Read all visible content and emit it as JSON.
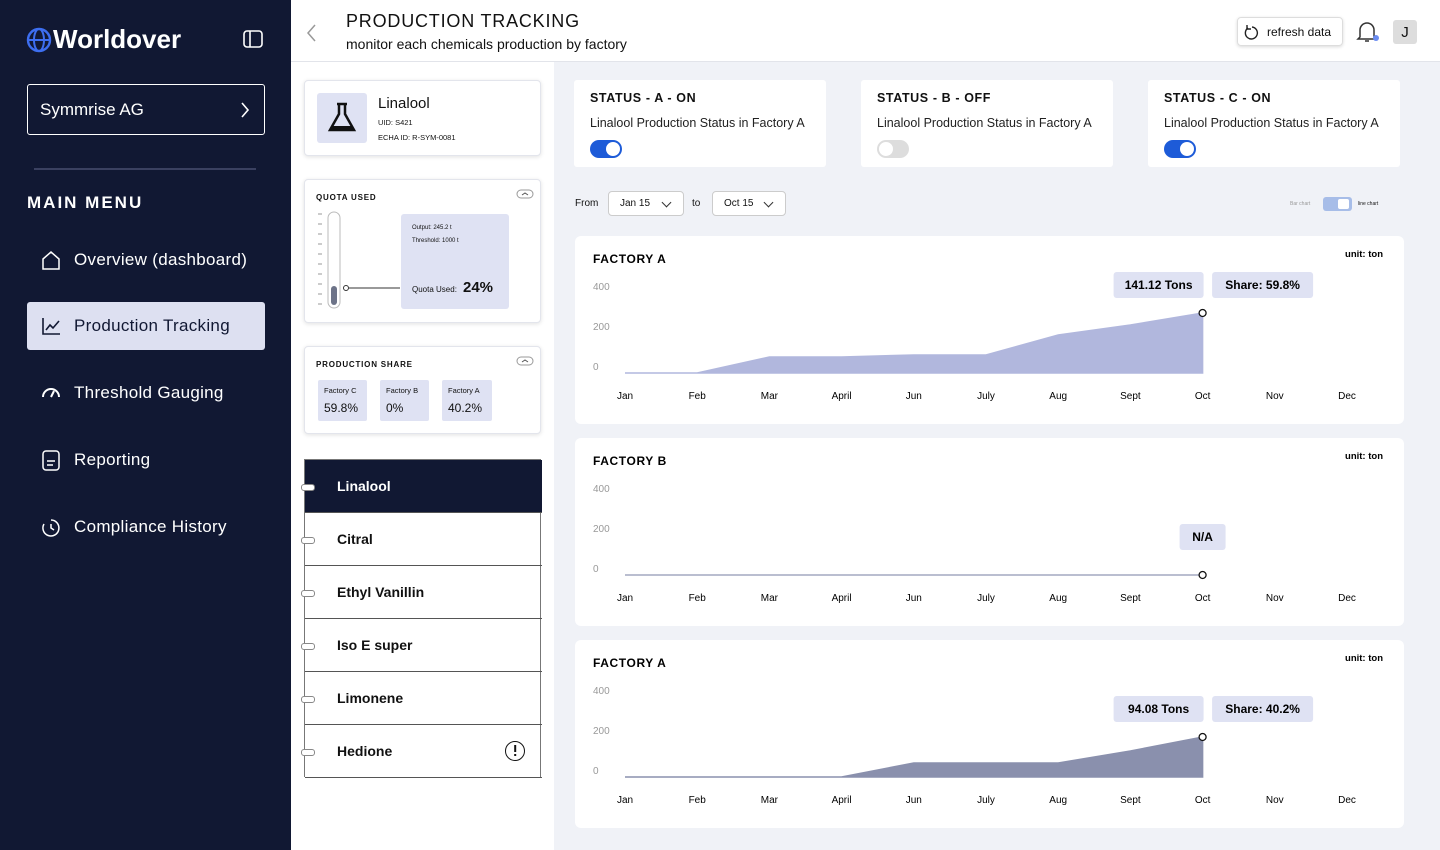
{
  "sidebar": {
    "brand": "Worldover",
    "company": "Symmrise AG",
    "menu_title": "MAIN MENU",
    "menu": [
      "Overview (dashboard)",
      "Production Tracking",
      "Threshold Gauging",
      "Reporting",
      "Compliance History"
    ]
  },
  "header": {
    "title": "PRODUCTION TRACKING",
    "subtitle": "monitor each chemicals production by factory",
    "refresh": "refresh data",
    "avatar": "J"
  },
  "product": {
    "name": "Linalool",
    "uid": "UID: S421",
    "echa": "ECHA ID: R-SYM-0081"
  },
  "quota": {
    "title": "QUOTA USED",
    "output": "Output: 245.2 t",
    "threshold": "Threshold: 1000 t",
    "used_label": "Quota Used:",
    "used_value": "24%"
  },
  "share": {
    "title": "PRODUCTION SHARE",
    "items": [
      {
        "name": "Factory C",
        "value": "59.8%"
      },
      {
        "name": "Factory B",
        "value": "0%"
      },
      {
        "name": "Factory A",
        "value": "40.2%"
      }
    ]
  },
  "chemicals": [
    "Linalool",
    "Citral",
    "Ethyl Vanillin",
    "Iso E super",
    "Limonene",
    "Hedione"
  ],
  "statuses": [
    {
      "title": "STATUS - A - ON",
      "text": "Linalool Production Status in Factory A",
      "on": true
    },
    {
      "title": "STATUS - B - OFF",
      "text": "Linalool Production Status in Factory A",
      "on": false
    },
    {
      "title": "STATUS - C - ON",
      "text": "Linalool Production Status in Factory A",
      "on": true
    }
  ],
  "filters": {
    "from_label": "From",
    "from": "Jan 15",
    "to_label": "to",
    "to": "Oct 15",
    "bar_label": "Bar chart",
    "line_label": "line chart"
  },
  "charts": [
    {
      "type": "area",
      "title": "FACTORY A",
      "unit": "unit: ton",
      "categories": [
        "Jan",
        "Feb",
        "Mar",
        "April",
        "Jun",
        "July",
        "Aug",
        "Sept",
        "Oct",
        "Nov",
        "Dec"
      ],
      "values": [
        0,
        0,
        80,
        80,
        90,
        90,
        190,
        240,
        300,
        null,
        null
      ],
      "ylim": [
        0,
        400
      ],
      "yticks": [
        0,
        200,
        400
      ],
      "annotations": [
        "141.12 Tons",
        "Share: 59.8%"
      ],
      "color": "#b1b7dd"
    },
    {
      "type": "area",
      "title": "FACTORY B",
      "unit": "unit: ton",
      "categories": [
        "Jan",
        "Feb",
        "Mar",
        "April",
        "Jun",
        "July",
        "Aug",
        "Sept",
        "Oct",
        "Nov",
        "Dec"
      ],
      "values": [
        0,
        0,
        0,
        0,
        0,
        0,
        0,
        0,
        0,
        null,
        null
      ],
      "ylim": [
        0,
        400
      ],
      "yticks": [
        0,
        200,
        400
      ],
      "annotations": [
        "N/A"
      ],
      "color": "#a3a8c0"
    },
    {
      "type": "area",
      "title": "FACTORY A",
      "unit": "unit: ton",
      "categories": [
        "Jan",
        "Feb",
        "Mar",
        "April",
        "Jun",
        "July",
        "Aug",
        "Sept",
        "Oct",
        "Nov",
        "Dec"
      ],
      "values": [
        0,
        0,
        0,
        0,
        70,
        70,
        70,
        130,
        200,
        null,
        null
      ],
      "ylim": [
        0,
        400
      ],
      "yticks": [
        0,
        200,
        400
      ],
      "annotations": [
        "94.08 Tons",
        "Share: 40.2%"
      ],
      "color": "#8a90ad"
    }
  ]
}
